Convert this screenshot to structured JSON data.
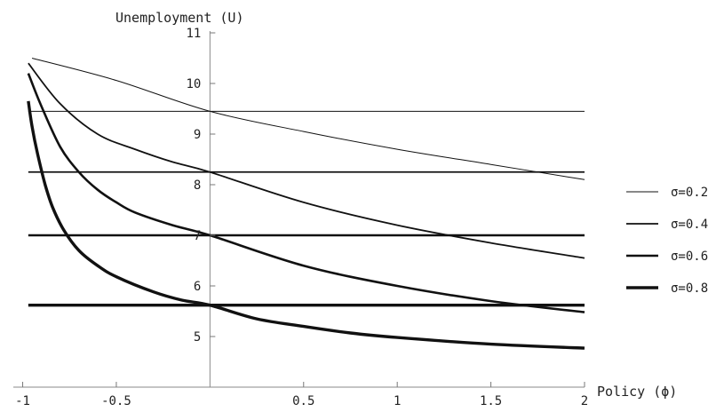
{
  "chart_data": {
    "type": "line",
    "title": "",
    "xlabel": "Policy (ϕ)",
    "ylabel": "Unemployment (U)",
    "xlim": [
      -1.05,
      2.0
    ],
    "ylim": [
      4.0,
      11.0
    ],
    "x_ticks": [
      -1,
      -0.5,
      0.5,
      1,
      1.5,
      2
    ],
    "x_tick_labels": [
      "-1",
      "-0.5",
      "0.5",
      "1",
      "1.5",
      "2"
    ],
    "y_ticks": [
      5,
      6,
      7,
      8,
      9,
      10,
      11
    ],
    "y_tick_labels": [
      "5",
      "6",
      "7",
      "8",
      "9",
      "10",
      "11"
    ],
    "legend_position": "right",
    "grid": false,
    "series": [
      {
        "name": "σ=0.2",
        "stroke_width": 1,
        "level": 9.45,
        "points": [
          [
            -0.95,
            10.5
          ],
          [
            -0.5,
            10.06
          ],
          [
            0,
            9.45
          ],
          [
            0.5,
            9.05
          ],
          [
            1,
            8.7
          ],
          [
            1.5,
            8.4
          ],
          [
            2,
            8.1
          ]
        ]
      },
      {
        "name": "σ=0.4",
        "stroke_width": 1.8,
        "level": 8.25,
        "points": [
          [
            -0.97,
            10.4
          ],
          [
            -0.8,
            9.6
          ],
          [
            -0.6,
            9.0
          ],
          [
            -0.4,
            8.7
          ],
          [
            -0.2,
            8.45
          ],
          [
            0,
            8.25
          ],
          [
            0.5,
            7.65
          ],
          [
            1,
            7.2
          ],
          [
            1.5,
            6.85
          ],
          [
            2,
            6.55
          ]
        ]
      },
      {
        "name": "σ=0.6",
        "stroke_width": 2.6,
        "level": 7.0,
        "points": [
          [
            -0.97,
            10.2
          ],
          [
            -0.9,
            9.55
          ],
          [
            -0.8,
            8.75
          ],
          [
            -0.7,
            8.25
          ],
          [
            -0.6,
            7.9
          ],
          [
            -0.5,
            7.65
          ],
          [
            -0.4,
            7.45
          ],
          [
            -0.2,
            7.2
          ],
          [
            0,
            7.0
          ],
          [
            0.5,
            6.4
          ],
          [
            1,
            6.0
          ],
          [
            1.5,
            5.7
          ],
          [
            2,
            5.48
          ]
        ]
      },
      {
        "name": "σ=0.8",
        "stroke_width": 3.4,
        "level": 5.62,
        "points": [
          [
            -0.97,
            9.65
          ],
          [
            -0.95,
            9.15
          ],
          [
            -0.92,
            8.6
          ],
          [
            -0.88,
            8.0
          ],
          [
            -0.84,
            7.55
          ],
          [
            -0.78,
            7.1
          ],
          [
            -0.7,
            6.7
          ],
          [
            -0.6,
            6.4
          ],
          [
            -0.5,
            6.18
          ],
          [
            -0.3,
            5.88
          ],
          [
            -0.15,
            5.72
          ],
          [
            0,
            5.62
          ],
          [
            0.25,
            5.35
          ],
          [
            0.5,
            5.2
          ],
          [
            0.75,
            5.07
          ],
          [
            1,
            4.98
          ],
          [
            1.5,
            4.85
          ],
          [
            2,
            4.77
          ]
        ]
      }
    ]
  }
}
